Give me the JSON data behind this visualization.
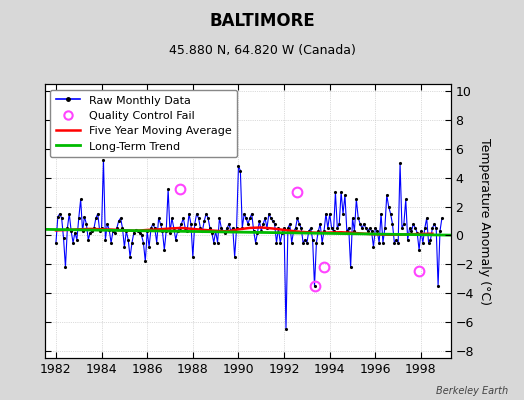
{
  "title": "BALTIMORE",
  "subtitle": "45.880 N, 64.820 W (Canada)",
  "ylabel": "Temperature Anomaly (°C)",
  "watermark": "Berkeley Earth",
  "xlim": [
    1981.5,
    1999.3
  ],
  "ylim": [
    -8.5,
    10.5
  ],
  "yticks": [
    -8,
    -6,
    -4,
    -2,
    0,
    2,
    4,
    6,
    8,
    10
  ],
  "xticks": [
    1982,
    1984,
    1986,
    1988,
    1990,
    1992,
    1994,
    1996,
    1998
  ],
  "background_color": "#d8d8d8",
  "plot_bg_color": "#ffffff",
  "raw_color": "#0000ff",
  "moving_avg_color": "#ff0000",
  "trend_color": "#00bb00",
  "qc_color": "#ff44ff",
  "raw_monthly_x": [
    1982.0,
    1982.083,
    1982.167,
    1982.25,
    1982.333,
    1982.417,
    1982.5,
    1982.583,
    1982.667,
    1982.75,
    1982.833,
    1982.917,
    1983.0,
    1983.083,
    1983.167,
    1983.25,
    1983.333,
    1983.417,
    1983.5,
    1983.583,
    1983.667,
    1983.75,
    1983.833,
    1983.917,
    1984.0,
    1984.083,
    1984.167,
    1984.25,
    1984.333,
    1984.417,
    1984.5,
    1984.583,
    1984.667,
    1984.75,
    1984.833,
    1984.917,
    1985.0,
    1985.083,
    1985.167,
    1985.25,
    1985.333,
    1985.417,
    1985.5,
    1985.583,
    1985.667,
    1985.75,
    1985.833,
    1985.917,
    1986.0,
    1986.083,
    1986.167,
    1986.25,
    1986.333,
    1986.417,
    1986.5,
    1986.583,
    1986.667,
    1986.75,
    1986.833,
    1986.917,
    1987.0,
    1987.083,
    1987.167,
    1987.25,
    1987.333,
    1987.417,
    1987.5,
    1987.583,
    1987.667,
    1987.75,
    1987.833,
    1987.917,
    1988.0,
    1988.083,
    1988.167,
    1988.25,
    1988.333,
    1988.417,
    1988.5,
    1988.583,
    1988.667,
    1988.75,
    1988.833,
    1988.917,
    1989.0,
    1989.083,
    1989.167,
    1989.25,
    1989.333,
    1989.417,
    1989.5,
    1989.583,
    1989.667,
    1989.75,
    1989.833,
    1989.917,
    1990.0,
    1990.083,
    1990.167,
    1990.25,
    1990.333,
    1990.417,
    1990.5,
    1990.583,
    1990.667,
    1990.75,
    1990.833,
    1990.917,
    1991.0,
    1991.083,
    1991.167,
    1991.25,
    1991.333,
    1991.417,
    1991.5,
    1991.583,
    1991.667,
    1991.75,
    1991.833,
    1991.917,
    1992.0,
    1992.083,
    1992.167,
    1992.25,
    1992.333,
    1992.417,
    1992.5,
    1992.583,
    1992.667,
    1992.75,
    1992.833,
    1992.917,
    1993.0,
    1993.083,
    1993.167,
    1993.25,
    1993.333,
    1993.417,
    1993.5,
    1993.583,
    1993.667,
    1993.75,
    1993.833,
    1993.917,
    1994.0,
    1994.083,
    1994.167,
    1994.25,
    1994.333,
    1994.417,
    1994.5,
    1994.583,
    1994.667,
    1994.75,
    1994.833,
    1994.917,
    1995.0,
    1995.083,
    1995.167,
    1995.25,
    1995.333,
    1995.417,
    1995.5,
    1995.583,
    1995.667,
    1995.75,
    1995.833,
    1995.917,
    1996.0,
    1996.083,
    1996.167,
    1996.25,
    1996.333,
    1996.417,
    1996.5,
    1996.583,
    1996.667,
    1996.75,
    1996.833,
    1996.917,
    1997.0,
    1997.083,
    1997.167,
    1997.25,
    1997.333,
    1997.417,
    1997.5,
    1997.583,
    1997.667,
    1997.75,
    1997.833,
    1997.917,
    1998.0,
    1998.083,
    1998.167,
    1998.25,
    1998.333,
    1998.417,
    1998.5,
    1998.583,
    1998.667,
    1998.75,
    1998.833,
    1998.917
  ],
  "raw_monthly_y": [
    -0.5,
    1.3,
    1.5,
    1.2,
    -0.2,
    -2.2,
    0.5,
    1.5,
    0.3,
    -0.5,
    0.2,
    -0.3,
    1.2,
    2.5,
    0.3,
    1.3,
    0.8,
    -0.3,
    0.2,
    0.3,
    0.5,
    1.2,
    1.5,
    0.3,
    0.5,
    5.2,
    -0.3,
    0.8,
    0.4,
    -0.5,
    0.3,
    0.2,
    0.5,
    1.0,
    1.2,
    0.5,
    -0.8,
    0.3,
    -0.3,
    -1.5,
    -0.5,
    0.2,
    0.4,
    0.3,
    0.2,
    0.0,
    -0.5,
    -1.8,
    0.3,
    -0.8,
    0.5,
    0.8,
    0.5,
    -0.5,
    1.2,
    0.8,
    0.3,
    -1.0,
    0.3,
    3.2,
    0.2,
    1.2,
    0.5,
    -0.3,
    0.3,
    0.5,
    0.8,
    1.2,
    0.5,
    0.3,
    1.5,
    0.8,
    -1.5,
    0.8,
    1.5,
    1.2,
    0.5,
    0.3,
    1.0,
    1.5,
    1.2,
    0.5,
    0.2,
    -0.5,
    0.3,
    -0.5,
    1.2,
    0.5,
    0.3,
    0.2,
    0.5,
    0.8,
    0.3,
    0.5,
    -1.5,
    0.5,
    4.8,
    4.5,
    0.5,
    1.5,
    1.2,
    0.8,
    1.2,
    1.5,
    0.3,
    -0.5,
    0.2,
    1.0,
    0.3,
    0.8,
    1.2,
    0.5,
    1.5,
    1.2,
    1.0,
    0.8,
    -0.5,
    0.5,
    -0.5,
    0.2,
    0.5,
    -6.5,
    0.5,
    0.8,
    -0.5,
    0.3,
    0.5,
    1.2,
    0.8,
    0.5,
    -0.5,
    -0.3,
    -0.5,
    0.3,
    0.5,
    -0.3,
    -3.5,
    -0.5,
    0.3,
    0.8,
    -0.5,
    0.3,
    1.5,
    0.5,
    1.5,
    0.5,
    0.3,
    3.0,
    0.5,
    0.8,
    3.0,
    1.5,
    2.8,
    0.3,
    0.5,
    -2.2,
    1.2,
    0.3,
    2.5,
    1.2,
    0.8,
    0.5,
    0.8,
    0.5,
    0.3,
    0.5,
    0.3,
    -0.8,
    0.5,
    0.3,
    -0.5,
    1.5,
    -0.5,
    0.5,
    2.8,
    2.0,
    1.5,
    0.8,
    -0.5,
    -0.3,
    -0.5,
    5.0,
    0.5,
    0.8,
    2.5,
    -0.3,
    0.5,
    0.3,
    0.8,
    0.5,
    0.2,
    -1.0,
    0.3,
    -0.5,
    0.5,
    1.2,
    -0.5,
    -0.3,
    0.5,
    0.8,
    0.5,
    -3.5,
    0.3,
    1.2
  ],
  "qc_fail_x": [
    1987.417,
    1992.583,
    1993.333,
    1993.75,
    1997.917
  ],
  "qc_fail_y": [
    3.2,
    3.0,
    -3.5,
    -2.2,
    -2.5
  ],
  "moving_avg_x": [
    1982.0,
    1982.5,
    1983.0,
    1983.5,
    1984.0,
    1984.5,
    1985.0,
    1985.5,
    1986.0,
    1986.5,
    1987.0,
    1987.5,
    1988.0,
    1988.5,
    1989.0,
    1989.5,
    1990.0,
    1990.5,
    1991.0,
    1991.5,
    1992.0,
    1992.5,
    1993.0,
    1993.5,
    1994.0,
    1994.5,
    1995.0,
    1995.5,
    1996.0,
    1996.5,
    1997.0,
    1997.5,
    1998.0,
    1998.5
  ],
  "moving_avg_y": [
    0.35,
    0.38,
    0.42,
    0.45,
    0.43,
    0.4,
    0.35,
    0.32,
    0.38,
    0.42,
    0.48,
    0.52,
    0.45,
    0.38,
    0.32,
    0.28,
    0.42,
    0.52,
    0.55,
    0.48,
    0.38,
    0.28,
    0.22,
    0.18,
    0.2,
    0.22,
    0.18,
    0.12,
    0.08,
    0.05,
    0.05,
    0.08,
    0.1,
    0.12
  ],
  "trend_x": [
    1981.5,
    1999.3
  ],
  "trend_y": [
    0.42,
    0.02
  ],
  "legend_fontsize": 8,
  "title_fontsize": 12,
  "subtitle_fontsize": 9,
  "tick_labelsize": 9
}
